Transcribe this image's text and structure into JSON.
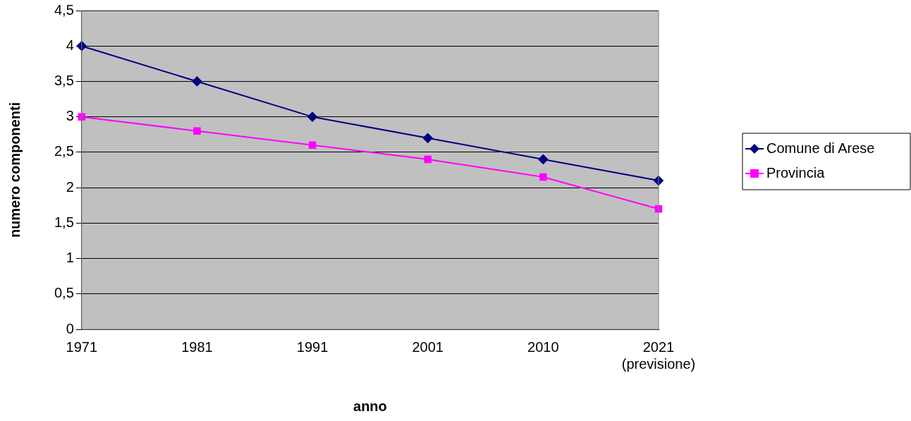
{
  "chart_data": {
    "type": "line",
    "xlabel": "anno",
    "ylabel": "numero componenti",
    "categories": [
      "1971",
      "1981",
      "1991",
      "2001",
      "2010",
      "2021\n(previsione)"
    ],
    "series": [
      {
        "name": "Comune di Arese",
        "color": "#000080",
        "marker": "diamond",
        "values": [
          4.0,
          3.5,
          3.0,
          2.7,
          2.4,
          2.1
        ]
      },
      {
        "name": "Provincia",
        "color": "#ff00ff",
        "marker": "square",
        "values": [
          3.0,
          2.8,
          2.6,
          2.4,
          2.15,
          1.7
        ]
      }
    ],
    "ylim": [
      0,
      4.5
    ],
    "yticks": [
      0,
      {
        "value": 0.5,
        "label": "0,5"
      },
      1,
      {
        "value": 1.5,
        "label": "1,5"
      },
      2,
      {
        "value": 2.5,
        "label": "2,5"
      },
      3,
      {
        "value": 3.5,
        "label": "3,5"
      },
      4,
      {
        "value": 4.5,
        "label": "4,5"
      }
    ],
    "grid": "y",
    "legend": "right",
    "line_style": "solid"
  }
}
